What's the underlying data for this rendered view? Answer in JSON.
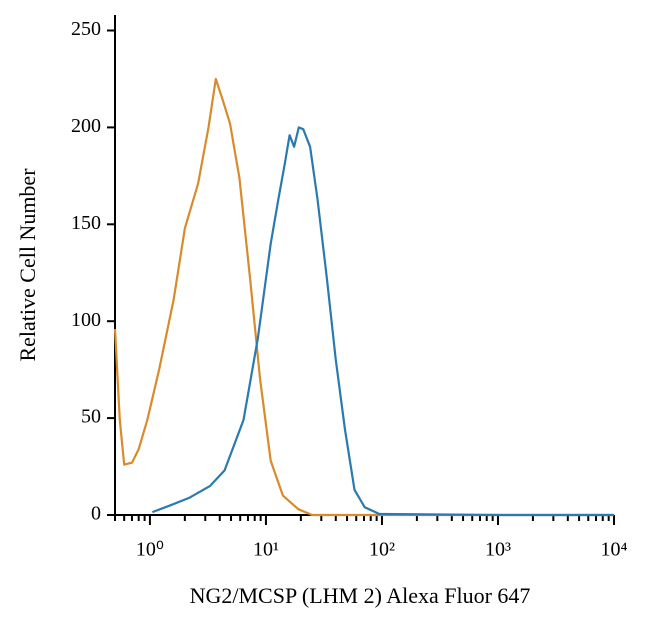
{
  "chart_data": {
    "type": "line",
    "xlabel": "NG2/MCSP (LHM 2) Alexa Fluor 647",
    "ylabel": "Relative Cell Number",
    "xscale": "log",
    "xlim": [
      0.5,
      10000
    ],
    "ylim": [
      0,
      258
    ],
    "xticks": [
      {
        "value": 1,
        "label": "10⁰"
      },
      {
        "value": 10,
        "label": "10¹"
      },
      {
        "value": 100,
        "label": "10²"
      },
      {
        "value": 1000,
        "label": "10³"
      },
      {
        "value": 10000,
        "label": "10⁴"
      }
    ],
    "yticks": [
      0,
      50,
      100,
      150,
      200,
      250
    ],
    "series": [
      {
        "color": "#d98a2b",
        "x": [
          0.5,
          0.55,
          0.6,
          0.7,
          0.8,
          0.95,
          1.2,
          1.6,
          2.0,
          2.6,
          3.2,
          3.7,
          4.2,
          4.9,
          5.9,
          7.3,
          8.9,
          11,
          14,
          19,
          25,
          100,
          1000,
          10000
        ],
        "values": [
          96,
          49,
          26,
          27,
          34,
          49,
          75,
          111,
          148,
          171,
          200,
          225,
          215,
          202,
          174,
          122,
          70,
          28,
          10,
          3,
          0,
          0,
          0,
          0
        ]
      },
      {
        "color": "#2a7ab0",
        "x": [
          1.05,
          1.5,
          2.2,
          3.3,
          4.4,
          6.4,
          8.5,
          11,
          12.8,
          14.5,
          16,
          17.5,
          19.2,
          21,
          24,
          27.8,
          33.5,
          40,
          48,
          58,
          71,
          95,
          1000,
          10000
        ],
        "values": [
          1.5,
          5,
          9,
          15,
          23,
          49,
          91,
          140,
          163,
          181,
          196,
          190,
          200,
          199,
          190,
          163,
          122,
          80,
          44,
          13,
          4,
          0.5,
          0,
          0
        ]
      }
    ]
  }
}
